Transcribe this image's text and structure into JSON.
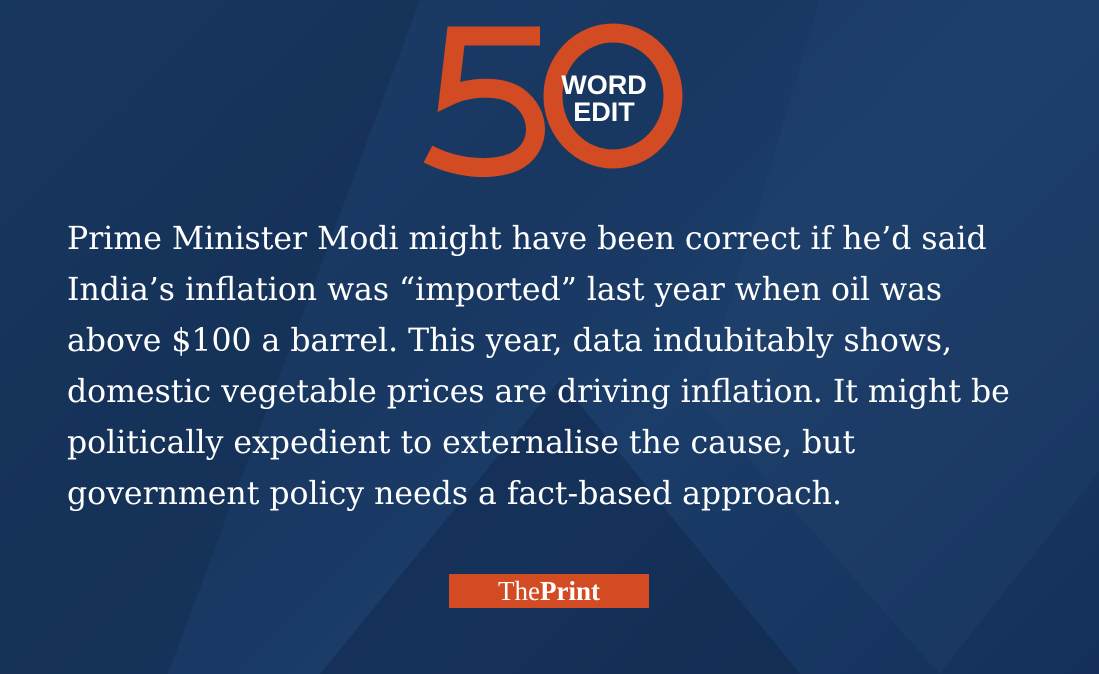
{
  "colors": {
    "background": "#1a3a63",
    "accent": "#d24b22",
    "text": "#ffffff"
  },
  "header": {
    "number": "50",
    "badge_line1": "WORD",
    "badge_line2": "EDIT"
  },
  "editorial": {
    "lines": [
      "Prime Minister Modi might have been correct if he’d said",
      "India’s inflation was “imported” last year when oil was",
      "above $100 a barrel. This year, data indubitably shows,",
      "domestic vegetable prices are driving inflation. It might be",
      "politically expedient to externalise the cause, but",
      "government policy needs a fact-based approach."
    ]
  },
  "brand": {
    "prefix": "The",
    "name": "Print"
  }
}
